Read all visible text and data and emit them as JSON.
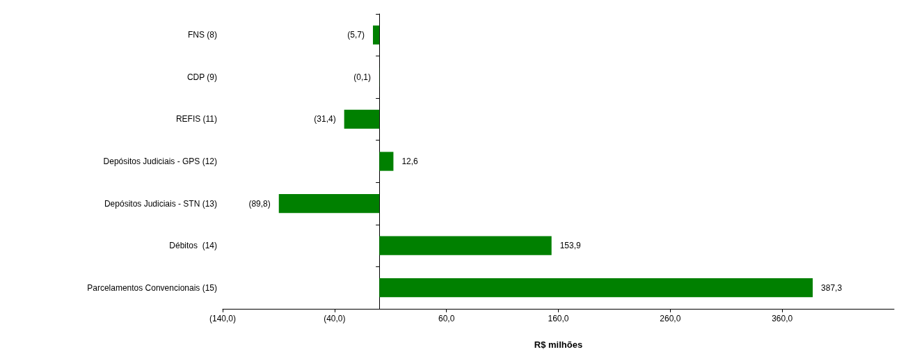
{
  "chart_data": {
    "type": "bar",
    "orientation": "horizontal",
    "xlabel": "R$ milhões",
    "categories": [
      "FNS (8)",
      "CDP (9)",
      "REFIS (11)",
      "Depósitos Judiciais - GPS (12)",
      "Depósitos Judiciais - STN (13)",
      "Débitos  (14)",
      "Parcelamentos Convencionais (15)"
    ],
    "values": [
      -5.7,
      -0.1,
      -31.4,
      12.6,
      -89.8,
      153.9,
      387.3
    ],
    "value_labels": [
      "(5,7)",
      "(0,1)",
      "(31,4)",
      "12,6",
      "(89,8)",
      "153,9",
      "387,3"
    ],
    "color": "#008000",
    "xlim": [
      -140,
      460
    ],
    "xticks": [
      {
        "value": -140,
        "label": "(140,0)"
      },
      {
        "value": -40,
        "label": "(40,0)"
      },
      {
        "value": 60,
        "label": "60,0"
      },
      {
        "value": 160,
        "label": "160,0"
      },
      {
        "value": 260,
        "label": "260,0"
      },
      {
        "value": 360,
        "label": "360,0"
      }
    ],
    "grid": false
  }
}
